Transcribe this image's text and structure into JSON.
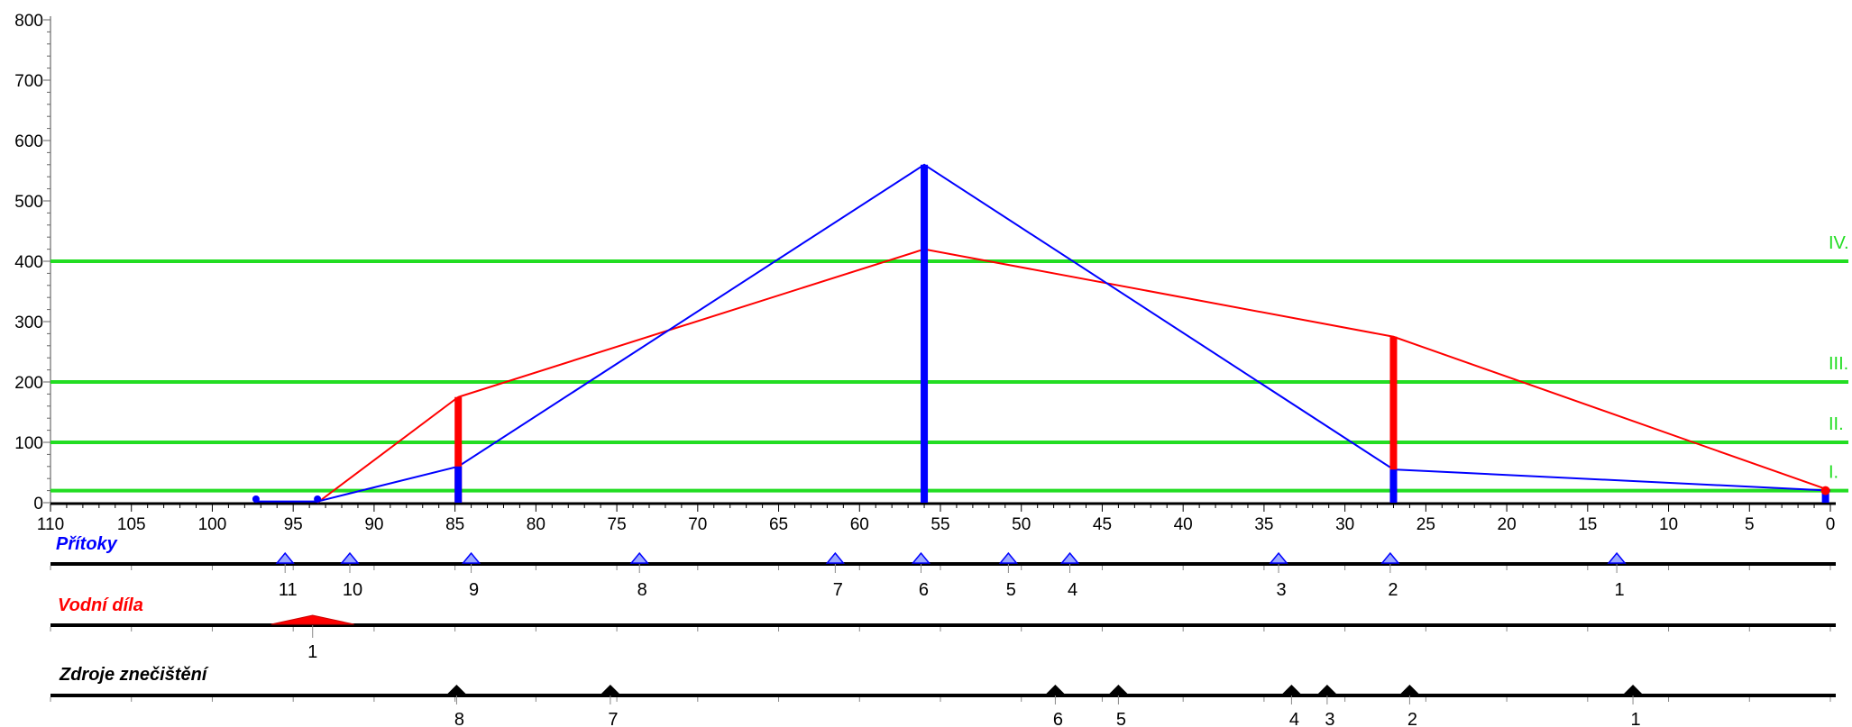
{
  "chart_data": {
    "type": "line",
    "xlim": [
      110,
      0
    ],
    "ylim": [
      0,
      800
    ],
    "x_ticks": [
      "110",
      "105",
      "100",
      "95",
      "90",
      "85",
      "80",
      "75",
      "70",
      "65",
      "60",
      "55",
      "50",
      "45",
      "40",
      "35",
      "30",
      "25",
      "20",
      "15",
      "10",
      "5",
      "0"
    ],
    "y_ticks": [
      "0",
      "100",
      "200",
      "300",
      "400",
      "500",
      "600",
      "700",
      "800"
    ],
    "grid": false,
    "bands": [
      {
        "label": "I.",
        "value": 20,
        "color": "#22dd22"
      },
      {
        "label": "II.",
        "value": 100,
        "color": "#22dd22"
      },
      {
        "label": "III.",
        "value": 200,
        "color": "#22dd22"
      },
      {
        "label": "IV.",
        "value": 400,
        "color": "#22dd22"
      }
    ],
    "series": [
      {
        "color": "#ff0000",
        "points": [
          [
            93.5,
            0
          ],
          [
            84.8,
            175
          ],
          [
            56,
            420
          ],
          [
            27,
            275
          ],
          [
            0,
            20
          ]
        ]
      },
      {
        "color": "#0000ff",
        "points": [
          [
            97.3,
            2
          ],
          [
            93.5,
            2
          ],
          [
            84.8,
            60
          ],
          [
            56,
            560
          ],
          [
            27,
            55
          ],
          [
            0,
            20
          ]
        ]
      }
    ],
    "red_bars": [
      {
        "x": 84.8,
        "value": 175
      },
      {
        "x": 27,
        "value": 275
      }
    ],
    "blue_bars": [
      {
        "x": 84.8,
        "value": 60
      },
      {
        "x": 56,
        "value": 560
      },
      {
        "x": 27,
        "value": 55
      },
      {
        "x": 0.3,
        "value": 20
      }
    ],
    "blue_dots": [
      {
        "x": 97.3,
        "value": 3
      },
      {
        "x": 93.5,
        "value": 3
      }
    ],
    "red_dot": {
      "x": 0.3,
      "value": 20
    },
    "tracks": [
      {
        "title": "Přítoky",
        "color": "#0000ff",
        "markers": [
          {
            "label": "11",
            "x": 95.5
          },
          {
            "label": "10",
            "x": 91.5
          },
          {
            "label": "9",
            "x": 84
          },
          {
            "label": "8",
            "x": 73.6
          },
          {
            "label": "7",
            "x": 61.5
          },
          {
            "label": "6",
            "x": 56.2
          },
          {
            "label": "5",
            "x": 50.8
          },
          {
            "label": "4",
            "x": 47
          },
          {
            "label": "3",
            "x": 34.1
          },
          {
            "label": "2",
            "x": 27.2
          },
          {
            "label": "1",
            "x": 13.2
          }
        ]
      },
      {
        "title": "Vodní díla",
        "color": "#ff0000",
        "markers": [
          {
            "label": "1",
            "x": 93.8
          }
        ]
      },
      {
        "title": "Zdroje znečištění",
        "color": "#000000",
        "markers": [
          {
            "label": "8",
            "x": 84.9
          },
          {
            "label": "7",
            "x": 75.4
          },
          {
            "label": "6",
            "x": 47.9
          },
          {
            "label": "5",
            "x": 44
          },
          {
            "label": "4",
            "x": 33.3
          },
          {
            "label": "3",
            "x": 31.1
          },
          {
            "label": "2",
            "x": 26
          },
          {
            "label": "1",
            "x": 12.2
          }
        ]
      }
    ]
  }
}
